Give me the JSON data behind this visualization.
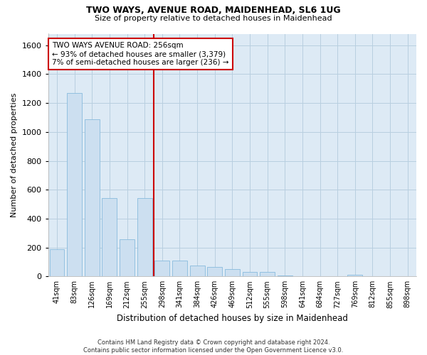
{
  "title": "TWO WAYS, AVENUE ROAD, MAIDENHEAD, SL6 1UG",
  "subtitle": "Size of property relative to detached houses in Maidenhead",
  "xlabel": "Distribution of detached houses by size in Maidenhead",
  "ylabel": "Number of detached properties",
  "categories": [
    "41sqm",
    "83sqm",
    "126sqm",
    "169sqm",
    "212sqm",
    "255sqm",
    "298sqm",
    "341sqm",
    "384sqm",
    "426sqm",
    "469sqm",
    "512sqm",
    "555sqm",
    "598sqm",
    "641sqm",
    "684sqm",
    "727sqm",
    "769sqm",
    "812sqm",
    "855sqm",
    "898sqm"
  ],
  "values": [
    190,
    1270,
    1090,
    540,
    255,
    540,
    110,
    110,
    75,
    65,
    50,
    30,
    30,
    5,
    0,
    0,
    0,
    10,
    0,
    0,
    0
  ],
  "bar_color": "#ccdff0",
  "bar_edge_color": "#88bbdd",
  "red_line_x": 5.5,
  "annotation_line1": "TWO WAYS AVENUE ROAD: 256sqm",
  "annotation_line2": "← 93% of detached houses are smaller (3,379)",
  "annotation_line3": "7% of semi-detached houses are larger (236) →",
  "annotation_box_color": "#ffffff",
  "annotation_box_edge": "#cc0000",
  "red_line_color": "#cc0000",
  "ylim": [
    0,
    1680
  ],
  "yticks": [
    0,
    200,
    400,
    600,
    800,
    1000,
    1200,
    1400,
    1600
  ],
  "grid_color": "#b8cfe0",
  "bg_color": "#ddeaf5",
  "title_fontsize": 9,
  "subtitle_fontsize": 8,
  "footer_line1": "Contains HM Land Registry data © Crown copyright and database right 2024.",
  "footer_line2": "Contains public sector information licensed under the Open Government Licence v3.0."
}
